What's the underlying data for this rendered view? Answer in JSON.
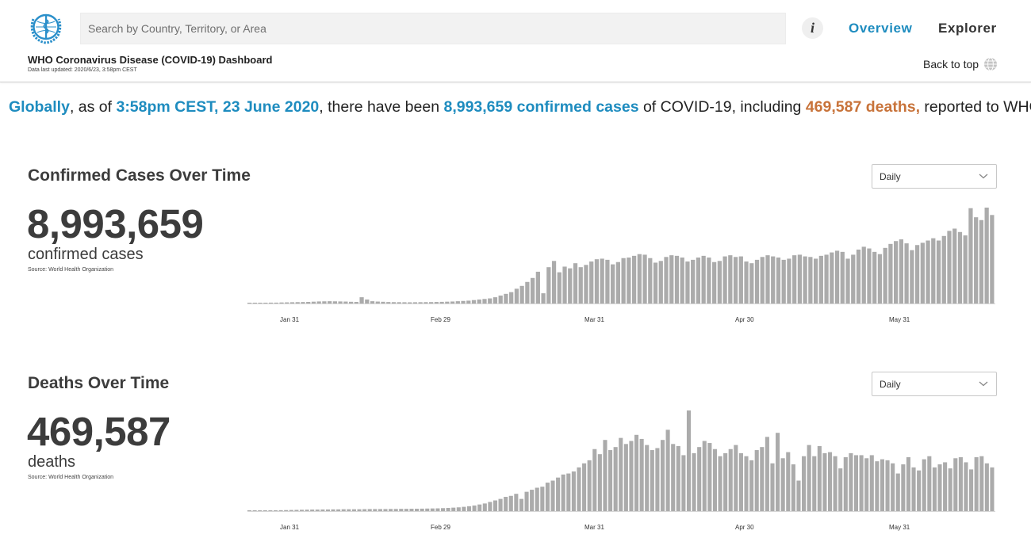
{
  "header": {
    "search_placeholder": "Search by Country, Territory, or Area",
    "info_label": "i",
    "nav": {
      "overview": "Overview",
      "explorer": "Explorer"
    },
    "dashboard_title": "WHO Coronavirus Disease (COVID-19) Dashboard",
    "last_updated": "Data last updated: 2020/6/23, 3:58pm CEST",
    "back_to_top": "Back to top"
  },
  "summary": {
    "scope": "Globally",
    "as_of": ", as of ",
    "datetime": "3:58pm CEST, 23 June 2020",
    "mid": ", there have been ",
    "cases_text": "8,993,659 confirmed cases",
    "mid2": " of COVID-19, including ",
    "deaths_text": "469,587 deaths,",
    "end": " reported to WHO."
  },
  "cases_panel": {
    "title": "Confirmed Cases Over Time",
    "total": "8,993,659",
    "label": "confirmed cases",
    "source": "Source: World Health Organization",
    "select_value": "Daily"
  },
  "deaths_panel": {
    "title": "Deaths Over Time",
    "total": "469,587",
    "label": "deaths",
    "source": "Source: World Health Organization",
    "select_value": "Daily"
  },
  "colors": {
    "accent_blue": "#1e8cbf",
    "accent_orange": "#c8733a",
    "bar_gray": "#ababab",
    "text_dark": "#3c3c3c"
  },
  "chart_data": [
    {
      "type": "bar",
      "x_tick_labels": [
        "Jan 31",
        "Feb 29",
        "Mar 31",
        "Apr 30",
        "May 31"
      ],
      "values": [
        0.5,
        0.8,
        1,
        1.2,
        1.5,
        1.5,
        1.8,
        2,
        2.2,
        2.4,
        2.6,
        2.8,
        3.2,
        3.6,
        3.8,
        4,
        3.8,
        3.6,
        3.4,
        3,
        2.8,
        11,
        7,
        4,
        3.4,
        3,
        2.6,
        2.4,
        2.3,
        2.2,
        2.1,
        2.2,
        2.3,
        2.4,
        2.5,
        2.7,
        2.9,
        3.2,
        3.5,
        4,
        4.5,
        5,
        6,
        7,
        8,
        9,
        11,
        14,
        17,
        20,
        26,
        31,
        38,
        45,
        56,
        18,
        64,
        75,
        55,
        65,
        62,
        71,
        64,
        68,
        74,
        78,
        79,
        77,
        69,
        73,
        80,
        81,
        84,
        87,
        86,
        80,
        72,
        75,
        82,
        85,
        84,
        81,
        74,
        77,
        81,
        84,
        81,
        73,
        75,
        83,
        85,
        82,
        83,
        74,
        71,
        77,
        82,
        85,
        83,
        81,
        77,
        79,
        85,
        86,
        83,
        82,
        79,
        84,
        86,
        90,
        93,
        91,
        79,
        86,
        95,
        100,
        97,
        91,
        87,
        98,
        105,
        110,
        113,
        106,
        94,
        103,
        107,
        111,
        115,
        111,
        119,
        128,
        132,
        126,
        120,
        168,
        152,
        147,
        169,
        156
      ]
    },
    {
      "type": "bar",
      "x_tick_labels": [
        "Jan 31",
        "Feb 29",
        "Mar 31",
        "Apr 30",
        "May 31"
      ],
      "values": [
        0.3,
        0.4,
        0.5,
        0.6,
        0.7,
        0.8,
        0.9,
        1,
        1.1,
        1.2,
        1.3,
        1.4,
        1.5,
        1.5,
        1.6,
        1.6,
        1.7,
        1.7,
        1.8,
        1.8,
        1.8,
        1.8,
        1.9,
        2,
        2,
        2,
        2,
        2.1,
        2.1,
        2.2,
        2.2,
        2.3,
        2.3,
        2.4,
        2.5,
        2.6,
        2.7,
        2.9,
        3.1,
        3.4,
        3.7,
        4.2,
        4.8,
        5.5,
        6.5,
        7.5,
        9,
        10.5,
        12,
        14,
        15,
        17,
        12,
        19,
        21,
        23,
        24,
        28,
        30,
        33,
        36,
        37,
        39,
        43,
        47,
        50,
        61,
        56,
        70,
        60,
        63,
        72,
        66,
        69,
        75,
        71,
        65,
        60,
        62,
        70,
        80,
        66,
        64,
        55,
        99,
        57,
        63,
        69,
        67,
        61,
        54,
        57,
        61,
        65,
        57,
        54,
        50,
        60,
        63,
        73,
        47,
        77,
        52,
        58,
        46,
        30,
        54,
        65,
        54,
        64,
        57,
        58,
        54,
        42,
        53,
        57,
        55,
        55,
        52,
        55,
        49,
        51,
        50,
        47,
        37,
        46,
        53,
        43,
        40,
        51,
        54,
        43,
        46,
        48,
        42,
        52,
        53,
        48,
        41,
        53,
        54,
        47,
        43
      ]
    }
  ]
}
